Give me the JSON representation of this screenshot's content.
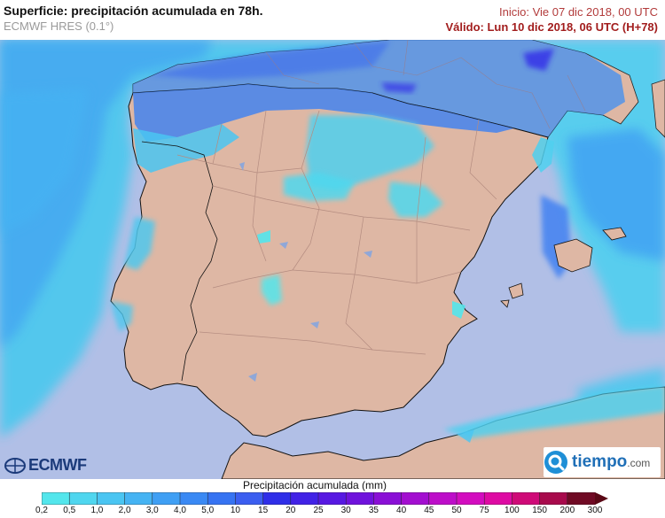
{
  "header": {
    "title": "Superficie: precipitación acumulada en 78h.",
    "model": "ECMWF HRES (0.1°)",
    "init": "Inicio: Vie 07 dic 2018, 00 UTC",
    "valid": "Válido: Lun 10 dic 2018, 06 UTC (H+78)"
  },
  "legend": {
    "title": "Precipitación acumulada (mm)",
    "ticks": [
      "0,2",
      "0,5",
      "1,0",
      "2,0",
      "3,0",
      "4,0",
      "5,0",
      "10",
      "15",
      "20",
      "25",
      "30",
      "35",
      "40",
      "45",
      "50",
      "75",
      "100",
      "150",
      "200",
      "300"
    ],
    "colors": [
      "#53e6ec",
      "#4fd6ef",
      "#4ac5f2",
      "#45b3f3",
      "#3f9ff4",
      "#3a89f4",
      "#3673f2",
      "#3b5ef0",
      "#2f2ee8",
      "#4122e6",
      "#5718e2",
      "#6f12dc",
      "#8a0fd6",
      "#a30ed0",
      "#bd0dc9",
      "#d30cbf",
      "#de0aa3",
      "#cf0a78",
      "#a80a4c",
      "#700a24"
    ]
  },
  "logos": {
    "ecmwf": "ECMWF",
    "tiempo": "tiempo",
    "tiempo_suffix": ".com"
  },
  "colors": {
    "sea": "#b1bfe6",
    "land": "#deb7a4",
    "coast": "#111111",
    "border": "#b88f84"
  }
}
